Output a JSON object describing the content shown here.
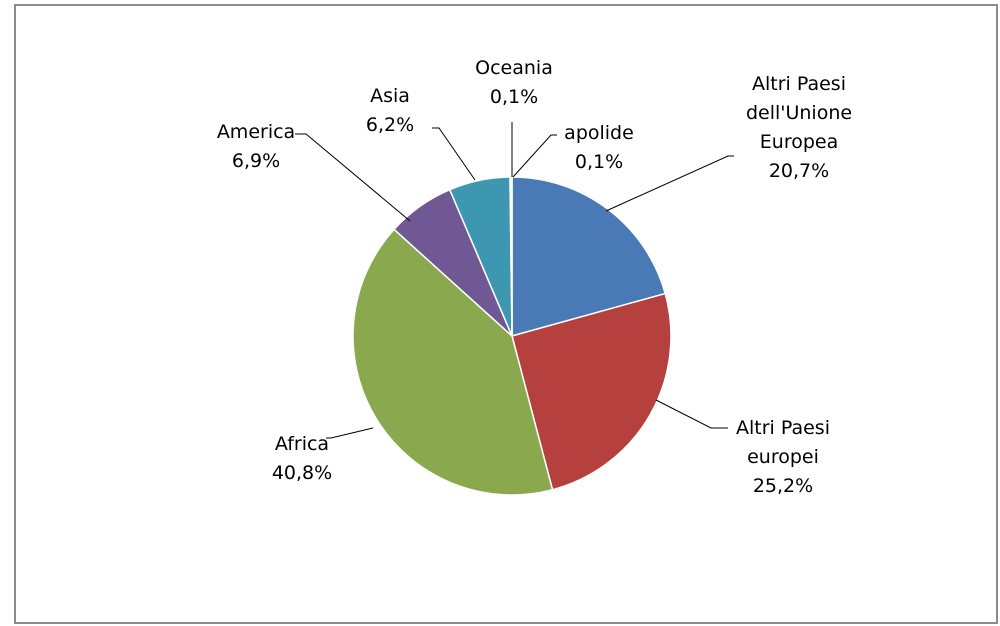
{
  "chart_data": {
    "type": "pie",
    "slices": [
      {
        "label": [
          "Altri Paesi",
          "dell'Unione",
          "Europea"
        ],
        "value_label": "20,7%",
        "value": 20.7,
        "color": "#4a7ab5"
      },
      {
        "label": [
          "Altri Paesi",
          "europei"
        ],
        "value_label": "25,2%",
        "value": 25.2,
        "color": "#b5403e"
      },
      {
        "label": [
          "Africa"
        ],
        "value_label": "40,8%",
        "value": 40.8,
        "color": "#8aa84e"
      },
      {
        "label": [
          "America"
        ],
        "value_label": "6,9%",
        "value": 6.9,
        "color": "#6f5894"
      },
      {
        "label": [
          "Asia"
        ],
        "value_label": "6,2%",
        "value": 6.2,
        "color": "#3d97b1"
      },
      {
        "label": [
          "Oceania"
        ],
        "value_label": "0,1%",
        "value": 0.1,
        "color": "#d9882f"
      },
      {
        "label": [
          "apolide"
        ],
        "value_label": "0,1%",
        "value": 0.1,
        "color": "#8fa6cf"
      }
    ]
  }
}
